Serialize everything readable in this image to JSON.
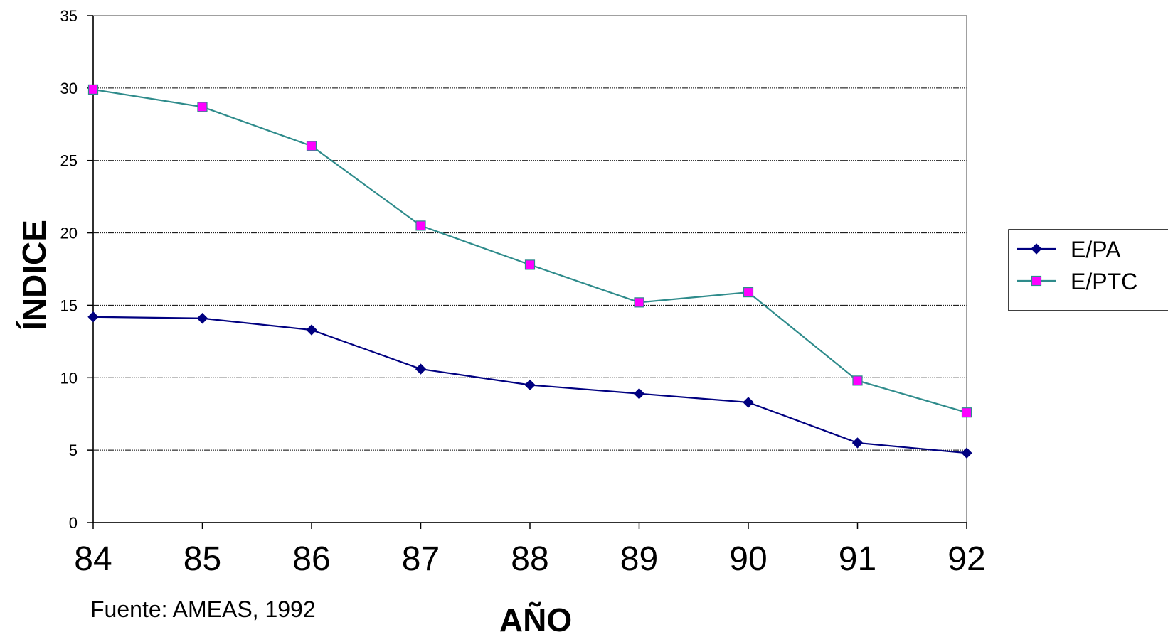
{
  "chart_data": {
    "type": "line",
    "title": "",
    "xlabel": "AÑO",
    "ylabel": "ÍNDICE",
    "source": "Fuente: AMEAS, 1992",
    "categories": [
      "84",
      "85",
      "86",
      "87",
      "88",
      "89",
      "90",
      "91",
      "92"
    ],
    "ylim": [
      0,
      35
    ],
    "yticks": [
      "0",
      "5",
      "10",
      "15",
      "20",
      "25",
      "30",
      "35"
    ],
    "grid": true,
    "legend_position": "right",
    "series": [
      {
        "name": "E/PA",
        "color": "#000080",
        "marker": "diamond",
        "values": [
          14.2,
          14.1,
          13.3,
          10.6,
          9.5,
          8.9,
          8.3,
          5.5,
          4.8
        ]
      },
      {
        "name": "E/PTC",
        "color": "#2E8B8B",
        "marker": "square",
        "marker_fill": "#FF00FF",
        "values": [
          29.9,
          28.7,
          26.0,
          20.5,
          17.8,
          15.2,
          15.9,
          9.8,
          7.6
        ]
      }
    ]
  }
}
